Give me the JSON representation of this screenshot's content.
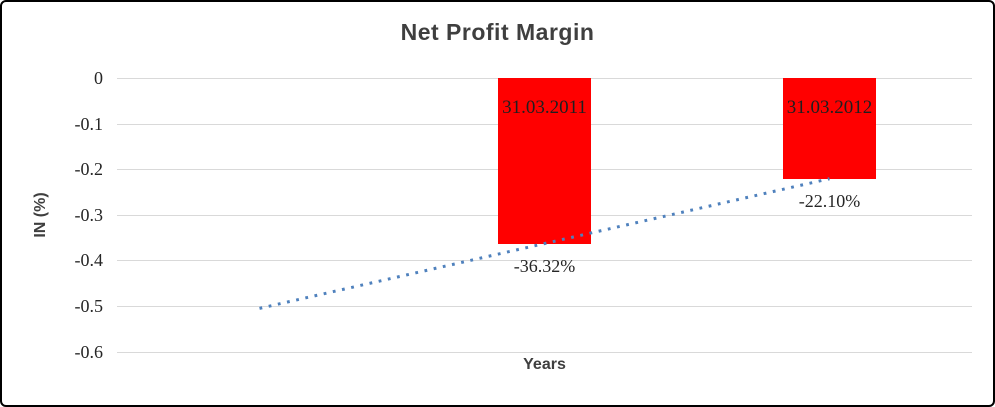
{
  "chart_data": {
    "type": "bar",
    "title": "Net Profit Margin",
    "xlabel": "Years",
    "ylabel": "IN (%)",
    "ylim": [
      -0.6,
      0
    ],
    "grid": true,
    "legend": "none",
    "y_ticks": [
      0,
      -0.1,
      -0.2,
      -0.3,
      -0.4,
      -0.5,
      -0.6
    ],
    "y_tick_labels": [
      "0",
      "-0.1",
      "-0.2",
      "-0.3",
      "-0.4",
      "-0.5",
      "-0.6"
    ],
    "n_slots": 3,
    "categories": [
      "31.03.2011",
      "31.03.2012"
    ],
    "bars": [
      {
        "slot": 2,
        "category": "31.03.2011",
        "value": -0.3632,
        "data_label": "-36.32%"
      },
      {
        "slot": 3,
        "category": "31.03.2012",
        "value": -0.221,
        "data_label": "-22.10%"
      }
    ],
    "trendline": {
      "style": "dotted",
      "color": "#4f81bd",
      "points": [
        {
          "slot": 1,
          "value": -0.5054
        },
        {
          "slot": 3,
          "value": -0.221
        }
      ]
    },
    "colors": {
      "bar": "#ff0000",
      "gridline": "#d9d9d9",
      "title_text": "#3f3f3f",
      "tick_text": "#262626",
      "border": "#000000"
    }
  }
}
